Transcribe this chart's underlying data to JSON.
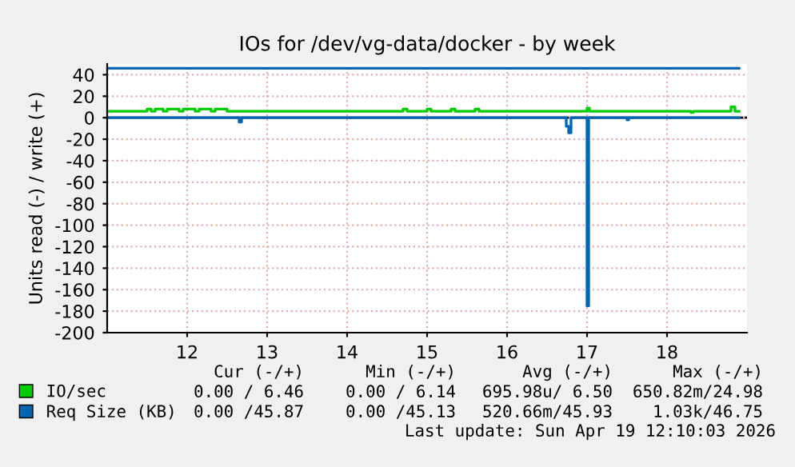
{
  "chart_data": {
    "type": "step",
    "title": "IOs for /dev/vg-data/docker - by week",
    "ylabel": "Units read (-) / write (+)",
    "xlim": [
      11,
      19
    ],
    "xticks": [
      12,
      13,
      14,
      15,
      16,
      17,
      18
    ],
    "ylim": [
      -200,
      50
    ],
    "yticks": [
      40,
      20,
      0,
      -20,
      -40,
      -60,
      -80,
      -100,
      -120,
      -140,
      -160,
      -180,
      -200
    ],
    "grid": true,
    "legend": "bottom",
    "marker": "none",
    "line_style": "solid",
    "series": [
      {
        "name": "IO/sec",
        "color": "#00cc00",
        "x": [
          11.0,
          11.5,
          11.55,
          11.6,
          11.7,
          11.75,
          11.9,
          11.95,
          12.1,
          12.15,
          12.3,
          12.35,
          12.5,
          12.55,
          14.7,
          14.75,
          15.0,
          15.05,
          15.3,
          15.35,
          15.6,
          15.65,
          17.0,
          17.03,
          18.3,
          18.33,
          18.8,
          18.85,
          18.9
        ],
        "values": [
          6,
          8,
          6,
          8,
          6,
          8,
          6,
          8,
          6,
          8,
          6,
          8,
          6,
          6,
          8,
          6,
          8,
          6,
          8,
          6,
          8,
          6,
          9,
          6,
          5,
          6,
          10,
          6,
          6
        ]
      },
      {
        "name": "Req Size (KB)",
        "color": "#0066b3",
        "x": [
          11.0,
          18.9
        ],
        "values": [
          46,
          46
        ]
      },
      {
        "color": "#0066b3",
        "x": [
          11.0,
          12.62,
          12.65,
          12.68,
          16.72,
          16.74,
          16.77,
          16.8,
          16.98,
          17.0,
          17.02,
          17.48,
          17.5,
          17.52,
          18.9
        ],
        "values": [
          0,
          0,
          -4,
          0,
          0,
          -8,
          -14,
          0,
          0,
          -175,
          0,
          0,
          -2,
          0,
          0
        ]
      }
    ],
    "ref_lines": [
      {
        "axis": "y",
        "value": 0,
        "color": "#000000"
      }
    ],
    "annotations": [
      "Cur (-/+)",
      "Min (-/+)",
      "Avg (-/+)",
      "Max (-/+)",
      "0.00 / 6.46",
      "0.00 / 6.14",
      "695.98u/ 6.50",
      "650.82m/24.98",
      "0.00 /45.87",
      "0.00 /45.13",
      "520.66m/45.93",
      "1.03k/46.75",
      "Last update: Sun Apr 19 12:10:03 2026"
    ]
  }
}
